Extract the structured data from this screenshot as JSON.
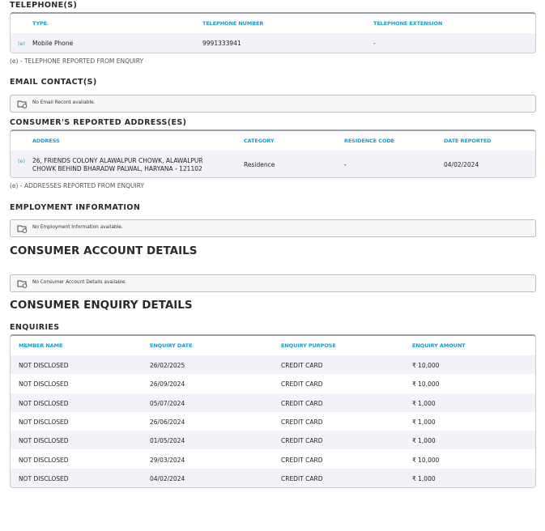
{
  "telephones": {
    "heading": "TELEPHONE(S)",
    "columns": [
      "TYPE",
      "TELEPHONE NUMBER",
      "TELEPHONE EXTENSION"
    ],
    "rows": [
      {
        "flag": "(e)",
        "type": "Mobile Phone",
        "number": "9991333941",
        "extension": "-"
      }
    ],
    "note": "(e) - TELEPHONE REPORTED FROM ENQUIRY"
  },
  "email": {
    "heading": "EMAIL CONTACT(S)",
    "empty_icon": "folder-info-icon",
    "empty": "No Email Record available."
  },
  "addresses": {
    "heading": "CONSUMER'S REPORTED ADDRESS(ES)",
    "columns": [
      "ADDRESS",
      "CATEGORY",
      "RESIDENCE CODE",
      "DATE REPORTED"
    ],
    "rows": [
      {
        "flag": "(e)",
        "address": "26, FRIENDS COLONY ALAWALPUR CHOWK, ALAWALPUR CHOWK BEHIND BHARADW PALWAL, HARYANA - 121102",
        "category": "Residence",
        "residence_code": "-",
        "date": "04/02/2024"
      }
    ],
    "note": "(e) - ADDRESSES REPORTED FROM ENQUIRY"
  },
  "employment": {
    "heading": "EMPLOYMENT INFORMATION",
    "empty": "No Employment Information available."
  },
  "accounts": {
    "heading": "CONSUMER ACCOUNT DETAILS",
    "empty": "No Consumer Account Details available."
  },
  "enquiry_details": {
    "heading": "CONSUMER ENQUIRY DETAILS",
    "subheading": "ENQUIRIES",
    "columns": [
      "MEMBER NAME",
      "ENQUIRY DATE",
      "ENQUIRY PURPOSE",
      "ENQUIRY AMOUNT"
    ],
    "rows": [
      [
        "NOT DISCLOSED",
        "26/02/2025",
        "CREDIT CARD",
        "₹ 10,000"
      ],
      [
        "NOT DISCLOSED",
        "26/09/2024",
        "CREDIT CARD",
        "₹ 10,000"
      ],
      [
        "NOT DISCLOSED",
        "05/07/2024",
        "CREDIT CARD",
        "₹ 1,000"
      ],
      [
        "NOT DISCLOSED",
        "26/06/2024",
        "CREDIT CARD",
        "₹ 1,000"
      ],
      [
        "NOT DISCLOSED",
        "01/05/2024",
        "CREDIT CARD",
        "₹ 1,000"
      ],
      [
        "NOT DISCLOSED",
        "29/03/2024",
        "CREDIT CARD",
        "₹ 10,000"
      ],
      [
        "NOT DISCLOSED",
        "04/02/2024",
        "CREDIT CARD",
        "₹ 1,000"
      ]
    ]
  },
  "colors": {
    "accent": "#1a9cc4",
    "row_alt": "#f1f3f8"
  }
}
